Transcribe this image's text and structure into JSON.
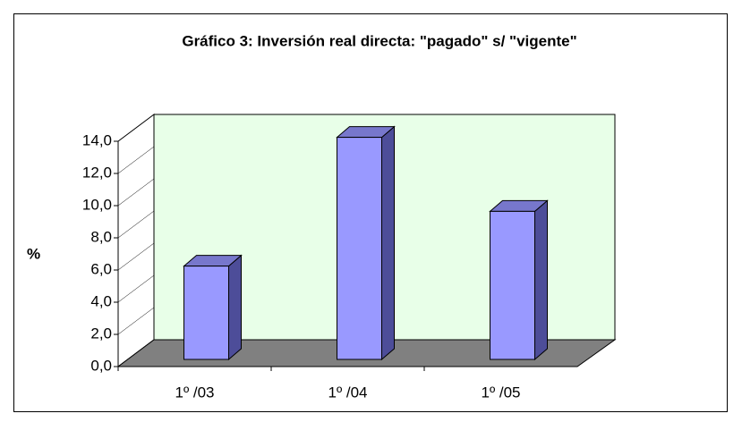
{
  "chart_data": {
    "type": "bar3d",
    "title": "Gráfico 3: Inversión real directa: \"pagado\" s/ \"vigente\"",
    "y_label": "%",
    "categories": [
      "1º /03",
      "1º /04",
      "1º /05"
    ],
    "values": [
      5.8,
      13.8,
      9.2
    ],
    "color": "#9999ff",
    "ylim": [
      0,
      14
    ],
    "yticks": [
      {
        "value": 0,
        "label": "0,0"
      },
      {
        "value": 2,
        "label": "2,0"
      },
      {
        "value": 4,
        "label": "4,0"
      },
      {
        "value": 6,
        "label": "6,0"
      },
      {
        "value": 8,
        "label": "8,0"
      },
      {
        "value": 10,
        "label": "10,0"
      },
      {
        "value": 12,
        "label": "12,0"
      },
      {
        "value": 14,
        "label": "14,0"
      }
    ],
    "grid": false
  }
}
